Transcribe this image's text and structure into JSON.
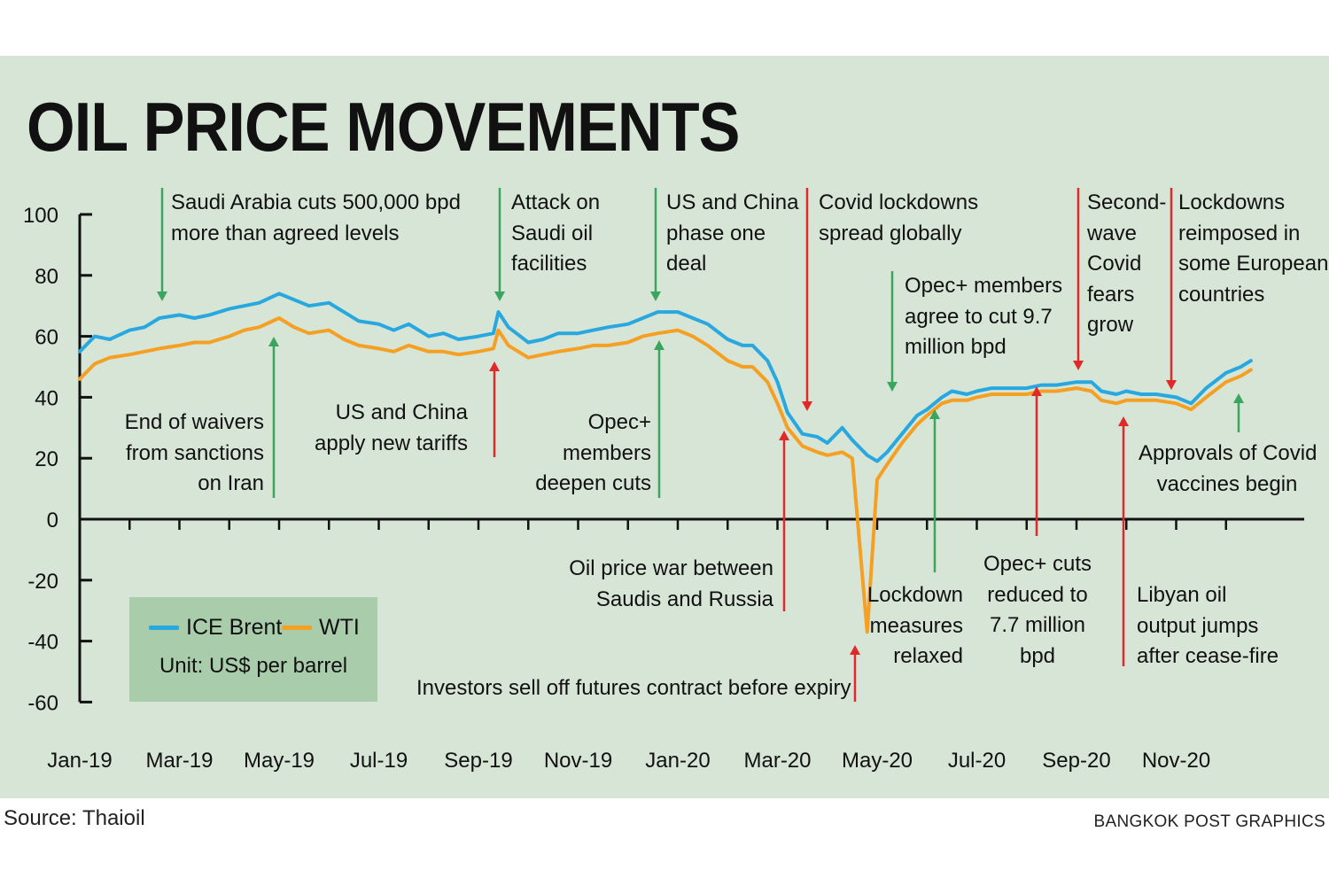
{
  "title": "OIL PRICE MOVEMENTS",
  "source": "Source: Thaioil",
  "credit": "BANGKOK POST GRAPHICS",
  "legend": {
    "brent": "ICE Brent",
    "wti": "WTI",
    "unit": "Unit: US$ per barrel"
  },
  "colors": {
    "background": "#d7e5d6",
    "brent": "#29a8e0",
    "wti": "#f5a023",
    "legend_bg": "#a9ccab",
    "arrow_up": "#3aa55c",
    "arrow_down": "#e02a2a"
  },
  "annotations": {
    "saudi_cuts": [
      "Saudi Arabia cuts 500,000 bpd",
      "more than agreed levels"
    ],
    "attack_saudi": [
      "Attack on",
      "Saudi oil",
      "facilities"
    ],
    "us_china_deal": [
      "US and China",
      "phase one",
      "deal"
    ],
    "covid_lockdowns": [
      "Covid lockdowns",
      "spread globally"
    ],
    "opec_cut_97": [
      "Opec+ members",
      "agree to cut 9.7",
      "million bpd"
    ],
    "second_wave": [
      "Second-",
      "wave",
      "Covid",
      "fears",
      "grow"
    ],
    "lockdowns_reimposed": [
      "Lockdowns",
      "reimposed in",
      "some European",
      "countries"
    ],
    "end_waivers": [
      "End of waivers",
      "from sanctions",
      "on Iran"
    ],
    "us_china_tariffs": [
      "US and China",
      "apply new tariffs"
    ],
    "opec_deepen": [
      "Opec+",
      "members",
      "deepen cuts"
    ],
    "price_war": [
      "Oil price war between",
      "Saudis and Russia"
    ],
    "futures_selloff": [
      "Investors sell off futures contract before expiry"
    ],
    "lockdown_relaxed": [
      "Lockdown",
      "measures",
      "relaxed"
    ],
    "opec_cuts_reduced": [
      "Opec+ cuts",
      "reduced to",
      "7.7 million",
      "bpd"
    ],
    "libyan_output": [
      "Libyan oil",
      "output jumps",
      "after cease-fire"
    ],
    "vaccines": [
      "Approvals of Covid",
      "vaccines begin"
    ]
  },
  "chart_data": {
    "type": "line",
    "title": "OIL PRICE MOVEMENTS",
    "ylabel": "US$ per barrel",
    "ylim": [
      -60,
      100
    ],
    "yticks": [
      100,
      80,
      60,
      40,
      20,
      0,
      -20,
      -40,
      -60
    ],
    "x_tick_labels": [
      "Jan-19",
      "Mar-19",
      "May-19",
      "Jul-19",
      "Sep-19",
      "Nov-19",
      "Jan-20",
      "Mar-20",
      "May-20",
      "Jul-20",
      "Sep-20",
      "Nov-20"
    ],
    "x_unit": "months since Jan-2019",
    "xlim": [
      0,
      23.5
    ],
    "series": [
      {
        "name": "ICE Brent",
        "points": [
          [
            0,
            55
          ],
          [
            0.3,
            60
          ],
          [
            0.6,
            59
          ],
          [
            1,
            62
          ],
          [
            1.3,
            63
          ],
          [
            1.6,
            66
          ],
          [
            2,
            67
          ],
          [
            2.3,
            66
          ],
          [
            2.6,
            67
          ],
          [
            3,
            69
          ],
          [
            3.3,
            70
          ],
          [
            3.6,
            71
          ],
          [
            4,
            74
          ],
          [
            4.3,
            72
          ],
          [
            4.6,
            70
          ],
          [
            5,
            71
          ],
          [
            5.3,
            68
          ],
          [
            5.6,
            65
          ],
          [
            6,
            64
          ],
          [
            6.3,
            62
          ],
          [
            6.6,
            64
          ],
          [
            7,
            60
          ],
          [
            7.3,
            61
          ],
          [
            7.6,
            59
          ],
          [
            8,
            60
          ],
          [
            8.3,
            61
          ],
          [
            8.4,
            68
          ],
          [
            8.6,
            63
          ],
          [
            9,
            58
          ],
          [
            9.3,
            59
          ],
          [
            9.6,
            61
          ],
          [
            10,
            61
          ],
          [
            10.3,
            62
          ],
          [
            10.6,
            63
          ],
          [
            11,
            64
          ],
          [
            11.3,
            66
          ],
          [
            11.6,
            68
          ],
          [
            12,
            68
          ],
          [
            12.3,
            66
          ],
          [
            12.6,
            64
          ],
          [
            13,
            59
          ],
          [
            13.3,
            57
          ],
          [
            13.5,
            57
          ],
          [
            13.8,
            52
          ],
          [
            14,
            45
          ],
          [
            14.2,
            35
          ],
          [
            14.5,
            28
          ],
          [
            14.8,
            27
          ],
          [
            15,
            25
          ],
          [
            15.3,
            30
          ],
          [
            15.5,
            26
          ],
          [
            15.8,
            21
          ],
          [
            16,
            19
          ],
          [
            16.2,
            22
          ],
          [
            16.5,
            28
          ],
          [
            16.8,
            34
          ],
          [
            17,
            36
          ],
          [
            17.3,
            40
          ],
          [
            17.5,
            42
          ],
          [
            17.8,
            41
          ],
          [
            18,
            42
          ],
          [
            18.3,
            43
          ],
          [
            18.6,
            43
          ],
          [
            19,
            43
          ],
          [
            19.3,
            44
          ],
          [
            19.6,
            44
          ],
          [
            20,
            45
          ],
          [
            20.3,
            45
          ],
          [
            20.5,
            42
          ],
          [
            20.8,
            41
          ],
          [
            21,
            42
          ],
          [
            21.3,
            41
          ],
          [
            21.6,
            41
          ],
          [
            22,
            40
          ],
          [
            22.3,
            38
          ],
          [
            22.6,
            43
          ],
          [
            23,
            48
          ],
          [
            23.3,
            50
          ],
          [
            23.5,
            52
          ]
        ]
      },
      {
        "name": "WTI",
        "points": [
          [
            0,
            46
          ],
          [
            0.3,
            51
          ],
          [
            0.6,
            53
          ],
          [
            1,
            54
          ],
          [
            1.3,
            55
          ],
          [
            1.6,
            56
          ],
          [
            2,
            57
          ],
          [
            2.3,
            58
          ],
          [
            2.6,
            58
          ],
          [
            3,
            60
          ],
          [
            3.3,
            62
          ],
          [
            3.6,
            63
          ],
          [
            4,
            66
          ],
          [
            4.3,
            63
          ],
          [
            4.6,
            61
          ],
          [
            5,
            62
          ],
          [
            5.3,
            59
          ],
          [
            5.6,
            57
          ],
          [
            6,
            56
          ],
          [
            6.3,
            55
          ],
          [
            6.6,
            57
          ],
          [
            7,
            55
          ],
          [
            7.3,
            55
          ],
          [
            7.6,
            54
          ],
          [
            8,
            55
          ],
          [
            8.3,
            56
          ],
          [
            8.4,
            62
          ],
          [
            8.6,
            57
          ],
          [
            9,
            53
          ],
          [
            9.3,
            54
          ],
          [
            9.6,
            55
          ],
          [
            10,
            56
          ],
          [
            10.3,
            57
          ],
          [
            10.6,
            57
          ],
          [
            11,
            58
          ],
          [
            11.3,
            60
          ],
          [
            11.6,
            61
          ],
          [
            12,
            62
          ],
          [
            12.3,
            60
          ],
          [
            12.6,
            57
          ],
          [
            13,
            52
          ],
          [
            13.3,
            50
          ],
          [
            13.5,
            50
          ],
          [
            13.8,
            45
          ],
          [
            14,
            38
          ],
          [
            14.2,
            30
          ],
          [
            14.5,
            24
          ],
          [
            14.8,
            22
          ],
          [
            15,
            21
          ],
          [
            15.3,
            22
          ],
          [
            15.5,
            20
          ],
          [
            15.8,
            -37
          ],
          [
            16,
            13
          ],
          [
            16.2,
            18
          ],
          [
            16.5,
            25
          ],
          [
            16.8,
            31
          ],
          [
            17,
            34
          ],
          [
            17.3,
            38
          ],
          [
            17.5,
            39
          ],
          [
            17.8,
            39
          ],
          [
            18,
            40
          ],
          [
            18.3,
            41
          ],
          [
            18.6,
            41
          ],
          [
            19,
            41
          ],
          [
            19.3,
            42
          ],
          [
            19.6,
            42
          ],
          [
            20,
            43
          ],
          [
            20.3,
            42
          ],
          [
            20.5,
            39
          ],
          [
            20.8,
            38
          ],
          [
            21,
            39
          ],
          [
            21.3,
            39
          ],
          [
            21.6,
            39
          ],
          [
            22,
            38
          ],
          [
            22.3,
            36
          ],
          [
            22.6,
            40
          ],
          [
            23,
            45
          ],
          [
            23.3,
            47
          ],
          [
            23.5,
            49
          ]
        ]
      }
    ]
  }
}
